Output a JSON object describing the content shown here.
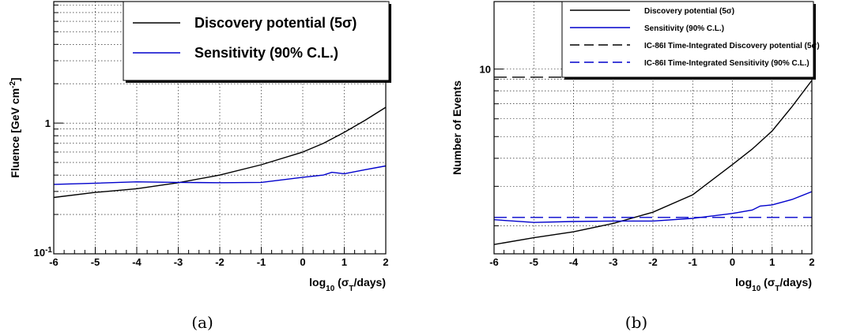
{
  "chart_data": [
    {
      "id": "a",
      "type": "line",
      "caption": "(a)",
      "ylabel": "Fluence [GeV cm⁻²]",
      "xlabel": "log₁₀ (σT/days)",
      "xlim": [
        -6,
        2
      ],
      "ylim": [
        0.1,
        8.5
      ],
      "yscale": "log",
      "xticks": [
        "-6",
        "-5",
        "-4",
        "-3",
        "-2",
        "-1",
        "0",
        "1",
        "2"
      ],
      "yticks": [
        {
          "value": 0.1,
          "label": "10⁻¹"
        },
        {
          "value": 1,
          "label": "1"
        }
      ],
      "grid": true,
      "legend_position": "top-right",
      "series": [
        {
          "name": "Discovery potential (5σ)",
          "color": "#000000",
          "dash": "solid",
          "x": [
            -6,
            -5,
            -4,
            -3,
            -2,
            -1,
            0,
            0.5,
            1,
            1.5,
            2
          ],
          "y": [
            0.27,
            0.295,
            0.315,
            0.35,
            0.4,
            0.48,
            0.6,
            0.7,
            0.85,
            1.05,
            1.32
          ]
        },
        {
          "name": "Sensitivity (90% C.L.)",
          "color": "#0000cc",
          "dash": "solid",
          "x": [
            -6,
            -5,
            -4,
            -3,
            -2,
            -1,
            0,
            0.5,
            0.7,
            1,
            1.5,
            2
          ],
          "y": [
            0.34,
            0.347,
            0.355,
            0.352,
            0.35,
            0.352,
            0.385,
            0.4,
            0.42,
            0.41,
            0.44,
            0.47
          ]
        }
      ]
    },
    {
      "id": "b",
      "type": "line",
      "caption": "(b)",
      "ylabel": "Number of Events",
      "xlabel": "log₁₀ (σT/days)",
      "xlim": [
        -6,
        2
      ],
      "ylim": [
        1.5,
        20
      ],
      "yscale": "log",
      "xticks": [
        "-6",
        "-5",
        "-4",
        "-3",
        "-2",
        "-1",
        "0",
        "1",
        "2"
      ],
      "yticks": [
        {
          "value": 10,
          "label": "10"
        }
      ],
      "grid": true,
      "legend_position": "top-right",
      "series": [
        {
          "name": "Discovery potential (5σ)",
          "color": "#000000",
          "dash": "solid",
          "x": [
            -6,
            -5,
            -4,
            -3,
            -2,
            -1,
            0,
            0.5,
            1,
            1.5,
            2
          ],
          "y": [
            1.65,
            1.77,
            1.88,
            2.05,
            2.3,
            2.75,
            3.75,
            4.4,
            5.3,
            6.8,
            8.9
          ]
        },
        {
          "name": "Sensitivity (90% C.L.)",
          "color": "#0000cc",
          "dash": "solid",
          "x": [
            -6,
            -5,
            -4,
            -3,
            -2,
            -1,
            0,
            0.5,
            0.7,
            1,
            1.5,
            2
          ],
          "y": [
            2.13,
            2.07,
            2.09,
            2.1,
            2.1,
            2.16,
            2.27,
            2.35,
            2.45,
            2.48,
            2.62,
            2.84
          ]
        },
        {
          "name": "IC-86I Time-Integrated Discovery potential (5σ)",
          "color": "#000000",
          "dash": "dashed",
          "x": [
            -6,
            2
          ],
          "y": [
            9.2,
            9.2
          ]
        },
        {
          "name": "IC-86I Time-Integrated Sensitivity (90% C.L.)",
          "color": "#0000cc",
          "dash": "dashed",
          "x": [
            -6,
            2
          ],
          "y": [
            2.18,
            2.18
          ]
        }
      ]
    }
  ]
}
